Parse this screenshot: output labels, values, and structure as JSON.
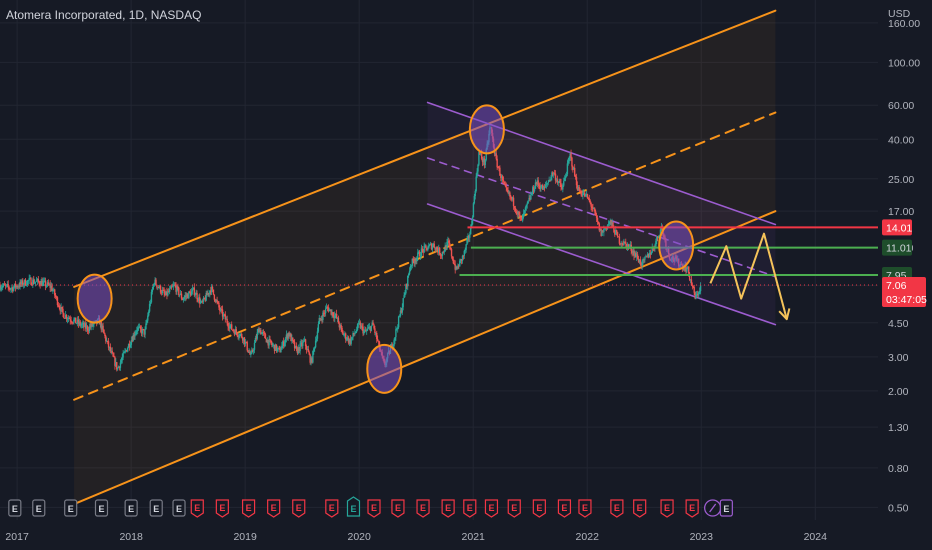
{
  "header": {
    "title": "Atomera Incorporated, 1D, NASDAQ"
  },
  "axis": {
    "currency_label": "USD"
  },
  "colors": {
    "background": "#161a25",
    "grid": "#222632",
    "up": "#26a69a",
    "down": "#ef5350",
    "orange": "#f7931a",
    "purple": "#9c5ccf",
    "green_line": "#4caf50",
    "red_line": "#f23645",
    "forecast": "#f5c35a",
    "current": "#f23645"
  },
  "chart_data": {
    "type": "candlestick",
    "title": "Atomera Incorporated, 1D, NASDAQ",
    "xlabel": "",
    "ylabel": "",
    "y_scale": "log",
    "x_range": [
      2016.85,
      2024.55
    ],
    "ylim": [
      0.43,
      210
    ],
    "x_ticks": [
      {
        "label": "2017",
        "value": 2017
      },
      {
        "label": "2018",
        "value": 2018
      },
      {
        "label": "2019",
        "value": 2019
      },
      {
        "label": "2020",
        "value": 2020
      },
      {
        "label": "2021",
        "value": 2021
      },
      {
        "label": "2022",
        "value": 2022
      },
      {
        "label": "2023",
        "value": 2023
      },
      {
        "label": "2024",
        "value": 2024
      }
    ],
    "y_ticks": [
      {
        "label": "160.00",
        "value": 160
      },
      {
        "label": "100.00",
        "value": 100
      },
      {
        "label": "60.00",
        "value": 60
      },
      {
        "label": "40.00",
        "value": 40
      },
      {
        "label": "25.00",
        "value": 25
      },
      {
        "label": "17.00",
        "value": 17
      },
      {
        "label": "11.00",
        "value": 11
      },
      {
        "label": "7.00",
        "value": 7
      },
      {
        "label": "4.50",
        "value": 4.5
      },
      {
        "label": "3.00",
        "value": 3
      },
      {
        "label": "2.00",
        "value": 2
      },
      {
        "label": "1.30",
        "value": 1.3
      },
      {
        "label": "0.80",
        "value": 0.8
      },
      {
        "label": "0.50",
        "value": 0.5
      }
    ],
    "price_path": [
      [
        2016.85,
        7.0
      ],
      [
        2016.95,
        6.8
      ],
      [
        2017.1,
        7.4
      ],
      [
        2017.2,
        7.3
      ],
      [
        2017.3,
        6.9
      ],
      [
        2017.4,
        5.0
      ],
      [
        2017.5,
        4.6
      ],
      [
        2017.62,
        4.2
      ],
      [
        2017.72,
        4.6
      ],
      [
        2017.8,
        3.4
      ],
      [
        2017.88,
        2.6
      ],
      [
        2017.95,
        3.2
      ],
      [
        2018.05,
        4.2
      ],
      [
        2018.12,
        4.0
      ],
      [
        2018.2,
        7.4
      ],
      [
        2018.3,
        6.2
      ],
      [
        2018.38,
        7.0
      ],
      [
        2018.45,
        6.0
      ],
      [
        2018.55,
        6.6
      ],
      [
        2018.62,
        5.6
      ],
      [
        2018.7,
        6.8
      ],
      [
        2018.78,
        5.2
      ],
      [
        2018.88,
        4.2
      ],
      [
        2018.98,
        3.8
      ],
      [
        2019.05,
        3.0
      ],
      [
        2019.12,
        4.2
      ],
      [
        2019.2,
        3.6
      ],
      [
        2019.3,
        3.2
      ],
      [
        2019.38,
        4.0
      ],
      [
        2019.45,
        3.2
      ],
      [
        2019.52,
        3.6
      ],
      [
        2019.58,
        2.8
      ],
      [
        2019.65,
        4.6
      ],
      [
        2019.72,
        5.4
      ],
      [
        2019.8,
        4.8
      ],
      [
        2019.85,
        4.0
      ],
      [
        2019.92,
        3.6
      ],
      [
        2020.0,
        4.4
      ],
      [
        2020.05,
        4.0
      ],
      [
        2020.12,
        4.4
      ],
      [
        2020.22,
        2.7
      ],
      [
        2020.3,
        3.6
      ],
      [
        2020.38,
        5.6
      ],
      [
        2020.45,
        9.0
      ],
      [
        2020.55,
        10.6
      ],
      [
        2020.65,
        11.4
      ],
      [
        2020.72,
        10.2
      ],
      [
        2020.78,
        11.6
      ],
      [
        2020.85,
        8.4
      ],
      [
        2020.92,
        10.2
      ],
      [
        2020.98,
        13.8
      ],
      [
        2021.05,
        34.0
      ],
      [
        2021.1,
        30.0
      ],
      [
        2021.15,
        47.0
      ],
      [
        2021.2,
        31.0
      ],
      [
        2021.28,
        22.0
      ],
      [
        2021.35,
        19.0
      ],
      [
        2021.42,
        15.0
      ],
      [
        2021.5,
        20.0
      ],
      [
        2021.55,
        24.0
      ],
      [
        2021.62,
        22.0
      ],
      [
        2021.7,
        27.0
      ],
      [
        2021.78,
        22.0
      ],
      [
        2021.85,
        33.0
      ],
      [
        2021.92,
        22.0
      ],
      [
        2022.0,
        20.0
      ],
      [
        2022.05,
        17.5
      ],
      [
        2022.12,
        13.0
      ],
      [
        2022.2,
        15.0
      ],
      [
        2022.28,
        12.0
      ],
      [
        2022.38,
        11.0
      ],
      [
        2022.48,
        9.0
      ],
      [
        2022.58,
        11.0
      ],
      [
        2022.65,
        14.0
      ],
      [
        2022.72,
        10.0
      ],
      [
        2022.82,
        9.0
      ],
      [
        2022.88,
        8.5
      ],
      [
        2022.95,
        6.0
      ],
      [
        2023.0,
        7.06
      ]
    ],
    "channels": {
      "orange_upper": [
        [
          2017.5,
          6.9
        ],
        [
          2023.65,
          185
        ]
      ],
      "orange_mid": [
        [
          2017.5,
          1.8
        ],
        [
          2023.65,
          55
        ]
      ],
      "orange_lower": [
        [
          2017.5,
          0.52
        ],
        [
          2023.65,
          17
        ]
      ],
      "purple_upper": [
        [
          2020.6,
          62
        ],
        [
          2023.65,
          14.5
        ]
      ],
      "purple_mid": [
        [
          2020.6,
          32
        ],
        [
          2023.65,
          7.8
        ]
      ],
      "purple_lower": [
        [
          2020.6,
          18.5
        ],
        [
          2023.65,
          4.4
        ]
      ]
    },
    "shaded_regions": [
      {
        "name": "orange-channel",
        "x_start": 2017.5,
        "x_end": 2023.65
      },
      {
        "name": "purple-channel",
        "x_start": 2020.6,
        "x_end": 2023.65
      }
    ],
    "levels": [
      {
        "label": "14.01",
        "value": 14.01,
        "x_start": 2020.95,
        "color": "#f23645",
        "tag_bg": "#f23645",
        "tag_fg": "#ffffff"
      },
      {
        "label": "11.01",
        "value": 11.01,
        "x_start": 2020.98,
        "color": "#4caf50",
        "tag_bg": "#1e4d2b",
        "tag_fg": "#d1d4dc"
      },
      {
        "label": "7.95",
        "value": 7.95,
        "x_start": 2020.88,
        "color": "#4caf50",
        "tag_bg": "#1e4d2b",
        "tag_fg": "#d1d4dc"
      }
    ],
    "current_price": {
      "label": "7.06",
      "value": 7.06,
      "countdown": "03:47:05",
      "x_start": 2016.85
    },
    "circles": [
      {
        "name": "circle-2017",
        "x": 2017.68,
        "y": 6.0
      },
      {
        "name": "circle-2020",
        "x": 2020.22,
        "y": 2.6
      },
      {
        "name": "circle-2021",
        "x": 2021.12,
        "y": 45
      },
      {
        "name": "circle-2022",
        "x": 2022.78,
        "y": 11.3
      }
    ],
    "forecast_path": [
      [
        2023.08,
        7.2
      ],
      [
        2023.22,
        11.2
      ],
      [
        2023.35,
        6.0
      ],
      [
        2023.55,
        13.0
      ],
      [
        2023.75,
        4.7
      ]
    ],
    "events": [
      {
        "x": 2016.98,
        "type": "E",
        "color": "#787b86"
      },
      {
        "x": 2017.19,
        "type": "E",
        "color": "#787b86"
      },
      {
        "x": 2017.47,
        "type": "E",
        "color": "#787b86"
      },
      {
        "x": 2017.74,
        "type": "E",
        "color": "#787b86"
      },
      {
        "x": 2018.0,
        "type": "E",
        "color": "#787b86"
      },
      {
        "x": 2018.22,
        "type": "E",
        "color": "#787b86"
      },
      {
        "x": 2018.42,
        "type": "E",
        "color": "#787b86"
      },
      {
        "x": 2018.58,
        "type": "E",
        "color": "#f23645"
      },
      {
        "x": 2018.8,
        "type": "E",
        "color": "#f23645"
      },
      {
        "x": 2019.03,
        "type": "E",
        "color": "#f23645"
      },
      {
        "x": 2019.25,
        "type": "E",
        "color": "#f23645"
      },
      {
        "x": 2019.47,
        "type": "E",
        "color": "#f23645"
      },
      {
        "x": 2019.76,
        "type": "E",
        "color": "#f23645"
      },
      {
        "x": 2019.95,
        "type": "E",
        "color": "#26a69a"
      },
      {
        "x": 2020.13,
        "type": "E",
        "color": "#f23645"
      },
      {
        "x": 2020.34,
        "type": "E",
        "color": "#f23645"
      },
      {
        "x": 2020.56,
        "type": "E",
        "color": "#f23645"
      },
      {
        "x": 2020.78,
        "type": "E",
        "color": "#f23645"
      },
      {
        "x": 2020.97,
        "type": "E",
        "color": "#f23645"
      },
      {
        "x": 2021.16,
        "type": "E",
        "color": "#f23645"
      },
      {
        "x": 2021.36,
        "type": "E",
        "color": "#f23645"
      },
      {
        "x": 2021.58,
        "type": "E",
        "color": "#f23645"
      },
      {
        "x": 2021.8,
        "type": "E",
        "color": "#f23645"
      },
      {
        "x": 2021.98,
        "type": "E",
        "color": "#f23645"
      },
      {
        "x": 2022.26,
        "type": "E",
        "color": "#f23645"
      },
      {
        "x": 2022.46,
        "type": "E",
        "color": "#f23645"
      },
      {
        "x": 2022.7,
        "type": "E",
        "color": "#f23645"
      },
      {
        "x": 2022.92,
        "type": "E",
        "color": "#f23645"
      },
      {
        "x": 2023.1,
        "type": "S",
        "color": "#9c5ccf"
      },
      {
        "x": 2023.22,
        "type": "E",
        "color": "#9c5ccf"
      }
    ]
  }
}
